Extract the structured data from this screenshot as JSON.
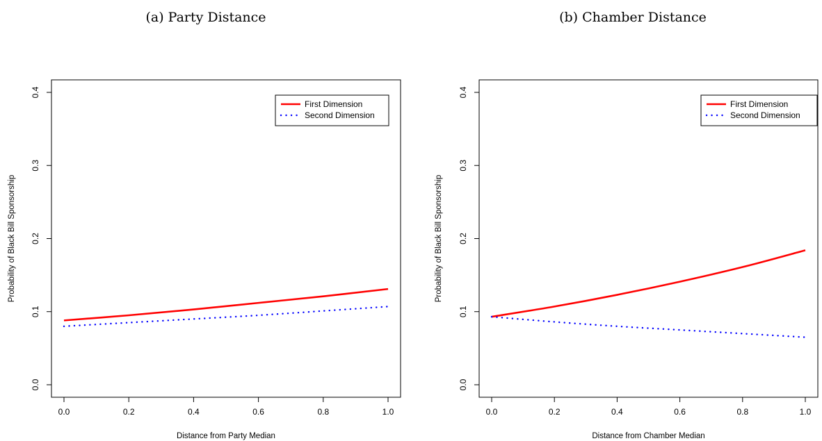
{
  "chart_data": [
    {
      "type": "line",
      "title": "(a) Party Distance",
      "xlabel": "Distance from Party Median",
      "ylabel": "Probability of Black Bill Sponsorship",
      "xlim": [
        0,
        1
      ],
      "ylim": [
        0,
        0.4
      ],
      "xticks": [
        "0.0",
        "0.2",
        "0.4",
        "0.6",
        "0.8",
        "1.0"
      ],
      "yticks": [
        "0.0",
        "0.1",
        "0.2",
        "0.3",
        "0.4"
      ],
      "legend_position": "top-right",
      "series": [
        {
          "name": "First Dimension",
          "color": "#ff0000",
          "style": "solid",
          "x": [
            0.0,
            0.2,
            0.4,
            0.6,
            0.8,
            1.0
          ],
          "y": [
            0.088,
            0.095,
            0.103,
            0.112,
            0.121,
            0.131
          ]
        },
        {
          "name": "Second Dimension",
          "color": "#0000ff",
          "style": "dotted",
          "x": [
            0.0,
            0.2,
            0.4,
            0.6,
            0.8,
            1.0
          ],
          "y": [
            0.08,
            0.085,
            0.09,
            0.095,
            0.101,
            0.107
          ]
        }
      ]
    },
    {
      "type": "line",
      "title": "(b) Chamber Distance",
      "xlabel": "Distance from Chamber Median",
      "ylabel": "Probability of Black Bill Sponsorship",
      "xlim": [
        0,
        1
      ],
      "ylim": [
        0,
        0.4
      ],
      "xticks": [
        "0.0",
        "0.2",
        "0.4",
        "0.6",
        "0.8",
        "1.0"
      ],
      "yticks": [
        "0.0",
        "0.1",
        "0.2",
        "0.3",
        "0.4"
      ],
      "legend_position": "top-right",
      "series": [
        {
          "name": "First Dimension",
          "color": "#ff0000",
          "style": "solid",
          "x": [
            0.0,
            0.2,
            0.4,
            0.6,
            0.8,
            1.0
          ],
          "y": [
            0.093,
            0.107,
            0.123,
            0.141,
            0.161,
            0.184
          ]
        },
        {
          "name": "Second Dimension",
          "color": "#0000ff",
          "style": "dotted",
          "x": [
            0.0,
            0.2,
            0.4,
            0.6,
            0.8,
            1.0
          ],
          "y": [
            0.093,
            0.086,
            0.08,
            0.075,
            0.07,
            0.065
          ]
        }
      ]
    }
  ]
}
